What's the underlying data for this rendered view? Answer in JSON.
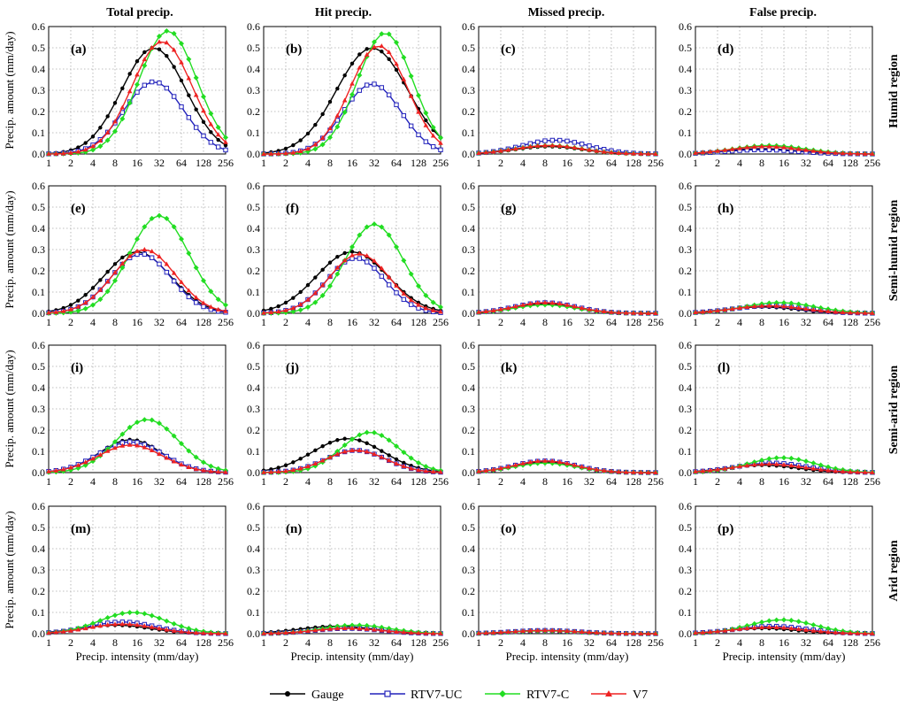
{
  "figure": {
    "column_titles": [
      "Total precip.",
      "Hit precip.",
      "Missed precip.",
      "False precip."
    ],
    "row_labels": [
      "Humid region",
      "Semi-humid region",
      "Semi-arid region",
      "Arid region"
    ],
    "ylabel": "Precip. amount (mm/day)",
    "xlabel": "Precip. intensity (mm/day)"
  },
  "legend": [
    {
      "name": "Gauge",
      "color": "#000000",
      "marker": "circle"
    },
    {
      "name": "RTV7-UC",
      "color": "#2222bb",
      "marker": "square"
    },
    {
      "name": "RTV7-C",
      "color": "#22dd22",
      "marker": "diamond"
    },
    {
      "name": "V7",
      "color": "#ee2222",
      "marker": "triangle"
    }
  ],
  "chart_data": [
    {
      "type": "line",
      "label": "(a)",
      "region": "Humid region",
      "category": "Total precip.",
      "xscale": "log2",
      "ylim": [
        0,
        0.6
      ],
      "xticks": [
        "1",
        "2",
        "4",
        "8",
        "16",
        "32",
        "64",
        "128",
        "256"
      ],
      "yticks": [
        "0.0",
        "0.1",
        "0.2",
        "0.3",
        "0.4",
        "0.5",
        "0.6"
      ],
      "xlabel": "",
      "ylabel": "Precip. amount (mm/day)",
      "series": [
        {
          "name": "Gauge",
          "peak": 0.5,
          "center": 27,
          "sigma": 1.45
        },
        {
          "name": "RTV7-UC",
          "peak": 0.34,
          "center": 27,
          "sigma": 1.35
        },
        {
          "name": "RTV7-C",
          "peak": 0.58,
          "center": 42,
          "sigma": 1.3
        },
        {
          "name": "V7",
          "peak": 0.53,
          "center": 35,
          "sigma": 1.35
        }
      ]
    },
    {
      "type": "line",
      "label": "(b)",
      "region": "Humid region",
      "category": "Hit precip.",
      "xscale": "log2",
      "ylim": [
        0,
        0.6
      ],
      "xticks": [
        "1",
        "2",
        "4",
        "8",
        "16",
        "32",
        "64",
        "128",
        "256"
      ],
      "yticks": [
        "0.0",
        "0.1",
        "0.2",
        "0.3",
        "0.4",
        "0.5",
        "0.6"
      ],
      "xlabel": "",
      "ylabel": "",
      "series": [
        {
          "name": "Gauge",
          "peak": 0.5,
          "center": 30,
          "sigma": 1.6
        },
        {
          "name": "RTV7-UC",
          "peak": 0.33,
          "center": 30,
          "sigma": 1.3
        },
        {
          "name": "RTV7-C",
          "peak": 0.57,
          "center": 45,
          "sigma": 1.25
        },
        {
          "name": "V7",
          "peak": 0.51,
          "center": 37,
          "sigma": 1.3
        }
      ]
    },
    {
      "type": "line",
      "label": "(c)",
      "region": "Humid region",
      "category": "Missed precip.",
      "xscale": "log2",
      "ylim": [
        0,
        0.6
      ],
      "xticks": [
        "1",
        "2",
        "4",
        "8",
        "16",
        "32",
        "64",
        "128",
        "256"
      ],
      "yticks": [
        "0.0",
        "0.1",
        "0.2",
        "0.3",
        "0.4",
        "0.5",
        "0.6"
      ],
      "xlabel": "",
      "ylabel": "",
      "series": [
        {
          "name": "Gauge",
          "peak": 0.035,
          "center": 9,
          "sigma": 1.5
        },
        {
          "name": "RTV7-UC",
          "peak": 0.065,
          "center": 11,
          "sigma": 1.5
        },
        {
          "name": "RTV7-C",
          "peak": 0.04,
          "center": 9,
          "sigma": 1.5
        },
        {
          "name": "V7",
          "peak": 0.04,
          "center": 9,
          "sigma": 1.5
        }
      ]
    },
    {
      "type": "line",
      "label": "(d)",
      "region": "Humid region",
      "category": "False precip.",
      "xscale": "log2",
      "ylim": [
        0,
        0.6
      ],
      "xticks": [
        "1",
        "2",
        "4",
        "8",
        "16",
        "32",
        "64",
        "128",
        "256"
      ],
      "yticks": [
        "0.0",
        "0.1",
        "0.2",
        "0.3",
        "0.4",
        "0.5",
        "0.6"
      ],
      "xlabel": "",
      "ylabel": "",
      "series": [
        {
          "name": "Gauge",
          "peak": 0.025,
          "center": 8,
          "sigma": 1.6
        },
        {
          "name": "RTV7-UC",
          "peak": 0.02,
          "center": 8,
          "sigma": 1.6
        },
        {
          "name": "RTV7-C",
          "peak": 0.04,
          "center": 10,
          "sigma": 1.6
        },
        {
          "name": "V7",
          "peak": 0.035,
          "center": 9,
          "sigma": 1.6
        }
      ]
    },
    {
      "type": "line",
      "label": "(e)",
      "region": "Semi-humid region",
      "category": "Total precip.",
      "xscale": "log2",
      "ylim": [
        0,
        0.6
      ],
      "xticks": [
        "1",
        "2",
        "4",
        "8",
        "16",
        "32",
        "64",
        "128",
        "256"
      ],
      "yticks": [
        "0.0",
        "0.1",
        "0.2",
        "0.3",
        "0.4",
        "0.5",
        "0.6"
      ],
      "xlabel": "",
      "ylabel": "Precip. amount (mm/day)",
      "series": [
        {
          "name": "Gauge",
          "peak": 0.29,
          "center": 16,
          "sigma": 1.5
        },
        {
          "name": "RTV7-UC",
          "peak": 0.28,
          "center": 18,
          "sigma": 1.35
        },
        {
          "name": "RTV7-C",
          "peak": 0.46,
          "center": 32,
          "sigma": 1.35
        },
        {
          "name": "V7",
          "peak": 0.3,
          "center": 20,
          "sigma": 1.4
        }
      ]
    },
    {
      "type": "line",
      "label": "(f)",
      "region": "Semi-humid region",
      "category": "Hit precip.",
      "xscale": "log2",
      "ylim": [
        0,
        0.6
      ],
      "xticks": [
        "1",
        "2",
        "4",
        "8",
        "16",
        "32",
        "64",
        "128",
        "256"
      ],
      "yticks": [
        "0.0",
        "0.1",
        "0.2",
        "0.3",
        "0.4",
        "0.5",
        "0.6"
      ],
      "xlabel": "",
      "ylabel": "",
      "series": [
        {
          "name": "Gauge",
          "peak": 0.29,
          "center": 16,
          "sigma": 1.6
        },
        {
          "name": "RTV7-UC",
          "peak": 0.26,
          "center": 18,
          "sigma": 1.3
        },
        {
          "name": "RTV7-C",
          "peak": 0.42,
          "center": 32,
          "sigma": 1.3
        },
        {
          "name": "V7",
          "peak": 0.28,
          "center": 20,
          "sigma": 1.35
        }
      ]
    },
    {
      "type": "line",
      "label": "(g)",
      "region": "Semi-humid region",
      "category": "Missed precip.",
      "xscale": "log2",
      "ylim": [
        0,
        0.6
      ],
      "xticks": [
        "1",
        "2",
        "4",
        "8",
        "16",
        "32",
        "64",
        "128",
        "256"
      ],
      "yticks": [
        "0.0",
        "0.1",
        "0.2",
        "0.3",
        "0.4",
        "0.5",
        "0.6"
      ],
      "xlabel": "",
      "ylabel": "",
      "series": [
        {
          "name": "Gauge",
          "peak": 0.045,
          "center": 8,
          "sigma": 1.4
        },
        {
          "name": "RTV7-UC",
          "peak": 0.05,
          "center": 8,
          "sigma": 1.4
        },
        {
          "name": "RTV7-C",
          "peak": 0.04,
          "center": 8,
          "sigma": 1.4
        },
        {
          "name": "V7",
          "peak": 0.05,
          "center": 8,
          "sigma": 1.4
        }
      ]
    },
    {
      "type": "line",
      "label": "(h)",
      "region": "Semi-humid region",
      "category": "False precip.",
      "xscale": "log2",
      "ylim": [
        0,
        0.6
      ],
      "xticks": [
        "1",
        "2",
        "4",
        "8",
        "16",
        "32",
        "64",
        "128",
        "256"
      ],
      "yticks": [
        "0.0",
        "0.1",
        "0.2",
        "0.3",
        "0.4",
        "0.5",
        "0.6"
      ],
      "xlabel": "",
      "ylabel": "",
      "series": [
        {
          "name": "Gauge",
          "peak": 0.03,
          "center": 8,
          "sigma": 1.6
        },
        {
          "name": "RTV7-UC",
          "peak": 0.035,
          "center": 10,
          "sigma": 1.6
        },
        {
          "name": "RTV7-C",
          "peak": 0.05,
          "center": 14,
          "sigma": 1.6
        },
        {
          "name": "V7",
          "peak": 0.035,
          "center": 10,
          "sigma": 1.6
        }
      ]
    },
    {
      "type": "line",
      "label": "(i)",
      "region": "Semi-arid region",
      "category": "Total precip.",
      "xscale": "log2",
      "ylim": [
        0,
        0.6
      ],
      "xticks": [
        "1",
        "2",
        "4",
        "8",
        "16",
        "32",
        "64",
        "128",
        "256"
      ],
      "yticks": [
        "0.0",
        "0.1",
        "0.2",
        "0.3",
        "0.4",
        "0.5",
        "0.6"
      ],
      "xlabel": "",
      "ylabel": "Precip. amount (mm/day)",
      "series": [
        {
          "name": "Gauge",
          "peak": 0.155,
          "center": 13,
          "sigma": 1.4
        },
        {
          "name": "RTV7-UC",
          "peak": 0.145,
          "center": 13,
          "sigma": 1.45
        },
        {
          "name": "RTV7-C",
          "peak": 0.25,
          "center": 22,
          "sigma": 1.4
        },
        {
          "name": "V7",
          "peak": 0.13,
          "center": 13,
          "sigma": 1.45
        }
      ]
    },
    {
      "type": "line",
      "label": "(j)",
      "region": "Semi-arid region",
      "category": "Hit precip.",
      "xscale": "log2",
      "ylim": [
        0,
        0.6
      ],
      "xticks": [
        "1",
        "2",
        "4",
        "8",
        "16",
        "32",
        "64",
        "128",
        "256"
      ],
      "yticks": [
        "0.0",
        "0.1",
        "0.2",
        "0.3",
        "0.4",
        "0.5",
        "0.6"
      ],
      "xlabel": "",
      "ylabel": "",
      "series": [
        {
          "name": "Gauge",
          "peak": 0.16,
          "center": 14,
          "sigma": 1.6
        },
        {
          "name": "RTV7-UC",
          "peak": 0.105,
          "center": 18,
          "sigma": 1.35
        },
        {
          "name": "RTV7-C",
          "peak": 0.19,
          "center": 28,
          "sigma": 1.3
        },
        {
          "name": "V7",
          "peak": 0.105,
          "center": 18,
          "sigma": 1.35
        }
      ]
    },
    {
      "type": "line",
      "label": "(k)",
      "region": "Semi-arid region",
      "category": "Missed precip.",
      "xscale": "log2",
      "ylim": [
        0,
        0.6
      ],
      "xticks": [
        "1",
        "2",
        "4",
        "8",
        "16",
        "32",
        "64",
        "128",
        "256"
      ],
      "yticks": [
        "0.0",
        "0.1",
        "0.2",
        "0.3",
        "0.4",
        "0.5",
        "0.6"
      ],
      "xlabel": "",
      "ylabel": "",
      "series": [
        {
          "name": "Gauge",
          "peak": 0.05,
          "center": 8,
          "sigma": 1.4
        },
        {
          "name": "RTV7-UC",
          "peak": 0.055,
          "center": 8,
          "sigma": 1.4
        },
        {
          "name": "RTV7-C",
          "peak": 0.045,
          "center": 8,
          "sigma": 1.4
        },
        {
          "name": "V7",
          "peak": 0.055,
          "center": 8,
          "sigma": 1.4
        }
      ]
    },
    {
      "type": "line",
      "label": "(l)",
      "region": "Semi-arid region",
      "category": "False precip.",
      "xscale": "log2",
      "ylim": [
        0,
        0.6
      ],
      "xticks": [
        "1",
        "2",
        "4",
        "8",
        "16",
        "32",
        "64",
        "128",
        "256"
      ],
      "yticks": [
        "0.0",
        "0.1",
        "0.2",
        "0.3",
        "0.4",
        "0.5",
        "0.6"
      ],
      "xlabel": "",
      "ylabel": "",
      "series": [
        {
          "name": "Gauge",
          "peak": 0.035,
          "center": 8,
          "sigma": 1.6
        },
        {
          "name": "RTV7-UC",
          "peak": 0.045,
          "center": 11,
          "sigma": 1.6
        },
        {
          "name": "RTV7-C",
          "peak": 0.07,
          "center": 15,
          "sigma": 1.5
        },
        {
          "name": "V7",
          "peak": 0.04,
          "center": 10,
          "sigma": 1.6
        }
      ]
    },
    {
      "type": "line",
      "label": "(m)",
      "region": "Arid region",
      "category": "Total precip.",
      "xscale": "log2",
      "ylim": [
        0,
        0.6
      ],
      "xticks": [
        "1",
        "2",
        "4",
        "8",
        "16",
        "32",
        "64",
        "128",
        "256"
      ],
      "yticks": [
        "0.0",
        "0.1",
        "0.2",
        "0.3",
        "0.4",
        "0.5",
        "0.6"
      ],
      "xlabel": "Precip. intensity (mm/day)",
      "ylabel": "Precip. amount (mm/day)",
      "series": [
        {
          "name": "Gauge",
          "peak": 0.04,
          "center": 8,
          "sigma": 1.6
        },
        {
          "name": "RTV7-UC",
          "peak": 0.055,
          "center": 10,
          "sigma": 1.5
        },
        {
          "name": "RTV7-C",
          "peak": 0.1,
          "center": 14,
          "sigma": 1.5
        },
        {
          "name": "V7",
          "peak": 0.045,
          "center": 10,
          "sigma": 1.5
        }
      ]
    },
    {
      "type": "line",
      "label": "(n)",
      "region": "Arid region",
      "category": "Hit precip.",
      "xscale": "log2",
      "ylim": [
        0,
        0.6
      ],
      "xticks": [
        "1",
        "2",
        "4",
        "8",
        "16",
        "32",
        "64",
        "128",
        "256"
      ],
      "yticks": [
        "0.0",
        "0.1",
        "0.2",
        "0.3",
        "0.4",
        "0.5",
        "0.6"
      ],
      "xlabel": "Precip. intensity (mm/day)",
      "ylabel": "",
      "series": [
        {
          "name": "Gauge",
          "peak": 0.035,
          "center": 10,
          "sigma": 1.7
        },
        {
          "name": "RTV7-UC",
          "peak": 0.025,
          "center": 14,
          "sigma": 1.5
        },
        {
          "name": "RTV7-C",
          "peak": 0.04,
          "center": 18,
          "sigma": 1.5
        },
        {
          "name": "V7",
          "peak": 0.025,
          "center": 14,
          "sigma": 1.5
        }
      ]
    },
    {
      "type": "line",
      "label": "(o)",
      "region": "Arid region",
      "category": "Missed precip.",
      "xscale": "log2",
      "ylim": [
        0,
        0.6
      ],
      "xticks": [
        "1",
        "2",
        "4",
        "8",
        "16",
        "32",
        "64",
        "128",
        "256"
      ],
      "yticks": [
        "0.0",
        "0.1",
        "0.2",
        "0.3",
        "0.4",
        "0.5",
        "0.6"
      ],
      "xlabel": "Precip. intensity (mm/day)",
      "ylabel": "",
      "series": [
        {
          "name": "Gauge",
          "peak": 0.015,
          "center": 8,
          "sigma": 1.5
        },
        {
          "name": "RTV7-UC",
          "peak": 0.015,
          "center": 8,
          "sigma": 1.5
        },
        {
          "name": "RTV7-C",
          "peak": 0.013,
          "center": 8,
          "sigma": 1.5
        },
        {
          "name": "V7",
          "peak": 0.015,
          "center": 8,
          "sigma": 1.5
        }
      ]
    },
    {
      "type": "line",
      "label": "(p)",
      "region": "Arid region",
      "category": "False precip.",
      "xscale": "log2",
      "ylim": [
        0,
        0.6
      ],
      "xticks": [
        "1",
        "2",
        "4",
        "8",
        "16",
        "32",
        "64",
        "128",
        "256"
      ],
      "yticks": [
        "0.0",
        "0.1",
        "0.2",
        "0.3",
        "0.4",
        "0.5",
        "0.6"
      ],
      "xlabel": "Precip. intensity (mm/day)",
      "ylabel": "",
      "series": [
        {
          "name": "Gauge",
          "peak": 0.025,
          "center": 8,
          "sigma": 1.6
        },
        {
          "name": "RTV7-UC",
          "peak": 0.035,
          "center": 11,
          "sigma": 1.6
        },
        {
          "name": "RTV7-C",
          "peak": 0.065,
          "center": 15,
          "sigma": 1.5
        },
        {
          "name": "V7",
          "peak": 0.03,
          "center": 10,
          "sigma": 1.6
        }
      ]
    }
  ]
}
